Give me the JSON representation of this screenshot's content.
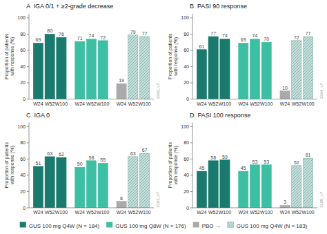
{
  "chart_data": [
    {
      "type": "bar",
      "title": "A  IGA 0/1 + ≥2-grade decrease",
      "categories": [
        "W24",
        "W52",
        "W100",
        "W24",
        "W52",
        "W100",
        "W24",
        "W52",
        "W100"
      ],
      "series": [
        {
          "name": "GUS 100 mg Q4W (N = 184)",
          "color": "#1a7a6e",
          "values": [
            69,
            80,
            76,
            null,
            null,
            null,
            null,
            null,
            null
          ]
        },
        {
          "name": "GUS 100 mg Q8W (N = 176)",
          "color": "#3dbfa3",
          "values": [
            null,
            null,
            null,
            71,
            74,
            72,
            null,
            null,
            null
          ]
        },
        {
          "name": "PBO →",
          "color": "#aaaaaa",
          "values": [
            null,
            null,
            null,
            null,
            null,
            null,
            19,
            null,
            null
          ]
        },
        {
          "name": "GUS 100 mg Q4W (N = 183)",
          "color": "#c8deda",
          "values": [
            null,
            null,
            null,
            null,
            null,
            null,
            null,
            79,
            77
          ]
        }
      ],
      "y_label": "Proportion of patients\nwith response (%)",
      "annotations": [
        "3392_v7"
      ],
      "ylim": [
        0,
        105
      ],
      "yticks": [
        0,
        20,
        40,
        60,
        80,
        100
      ],
      "data_labels": true,
      "grid": false,
      "legend": "bottom"
    },
    {
      "type": "bar",
      "title": "B  PASI 90 response",
      "categories": [
        "W24",
        "W52",
        "W100",
        "W24",
        "W52",
        "W100",
        "W24",
        "W52",
        "W100"
      ],
      "series": [
        {
          "color": "#1a7a6e",
          "values": [
            61,
            77,
            74,
            null,
            null,
            null,
            null,
            null,
            null
          ]
        },
        {
          "color": "#3dbfa3",
          "values": [
            null,
            null,
            null,
            69,
            74,
            70,
            null,
            null,
            null
          ]
        },
        {
          "color": "#aaaaaa",
          "values": [
            null,
            null,
            null,
            null,
            null,
            null,
            10,
            null,
            null
          ]
        },
        {
          "color": "#c8deda",
          "values": [
            null,
            null,
            null,
            null,
            null,
            null,
            null,
            72,
            77
          ]
        }
      ],
      "y_label": "Proportion of patients\nwith response (%)",
      "annotations": [
        "3394_v7"
      ],
      "ylim": [
        0,
        105
      ],
      "yticks": [
        0,
        20,
        40,
        60,
        80,
        100
      ],
      "data_labels": true,
      "grid": false
    },
    {
      "type": "bar",
      "title": "C  IGA 0",
      "categories": [
        "W24",
        "W52",
        "W100",
        "W24",
        "W52",
        "W100",
        "W24",
        "W52",
        "W100"
      ],
      "series": [
        {
          "color": "#1a7a6e",
          "values": [
            51,
            63,
            62,
            null,
            null,
            null,
            null,
            null,
            null
          ]
        },
        {
          "color": "#3dbfa3",
          "values": [
            null,
            null,
            null,
            50,
            58,
            55,
            null,
            null,
            null
          ]
        },
        {
          "color": "#aaaaaa",
          "values": [
            null,
            null,
            null,
            null,
            null,
            null,
            8,
            null,
            null
          ]
        },
        {
          "color": "#c8deda",
          "values": [
            null,
            null,
            null,
            null,
            null,
            null,
            null,
            63,
            67
          ]
        }
      ],
      "y_label": "Proportion of patients\nwith response (%)",
      "annotations": [
        "3393_v7"
      ],
      "ylim": [
        0,
        105
      ],
      "yticks": [
        0,
        20,
        40,
        60,
        80,
        100
      ],
      "data_labels": true,
      "grid": false
    },
    {
      "type": "bar",
      "title": "D  PASI 100 response",
      "categories": [
        "W24",
        "W52",
        "W100",
        "W24",
        "W52",
        "W100",
        "W24",
        "W52",
        "W100"
      ],
      "series": [
        {
          "color": "#1a7a6e",
          "values": [
            45,
            58,
            59,
            null,
            null,
            null,
            null,
            null,
            null
          ]
        },
        {
          "color": "#3dbfa3",
          "values": [
            null,
            null,
            null,
            45,
            53,
            53,
            null,
            null,
            null
          ]
        },
        {
          "color": "#aaaaaa",
          "values": [
            null,
            null,
            null,
            null,
            null,
            null,
            3,
            null,
            null
          ]
        },
        {
          "color": "#c8deda",
          "values": [
            null,
            null,
            null,
            null,
            null,
            null,
            null,
            52,
            61
          ]
        }
      ],
      "y_label": "Proportion of patients\nwith response (%)",
      "annotations": [
        "3395_v7"
      ],
      "ylim": [
        0,
        105
      ],
      "yticks": [
        0,
        20,
        40,
        60,
        80,
        100
      ],
      "data_labels": true,
      "grid": false
    }
  ]
}
